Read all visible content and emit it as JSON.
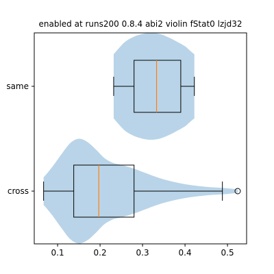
{
  "chart_data": {
    "type": "violin",
    "title": "enabled at runs200 0.8.4 abi2 violin fStat0 lzjd32",
    "xlabel": "",
    "ylabel": "",
    "orientation": "horizontal",
    "xlim": [
      0.045,
      0.545
    ],
    "x_ticks": [
      0.1,
      0.2,
      0.3,
      0.4,
      0.5
    ],
    "x_tick_labels": [
      "0.1",
      "0.2",
      "0.3",
      "0.4",
      "0.5"
    ],
    "categories": [
      "cross",
      "same"
    ],
    "violin_color": "#b9d4e8",
    "median_color": "#ff7f0e",
    "grid": false,
    "legend": "none",
    "series": [
      {
        "category": "cross",
        "whisker_low": 0.067,
        "q1": 0.138,
        "median": 0.197,
        "q3": 0.28,
        "whisker_high": 0.488,
        "outliers": [
          0.524
        ],
        "density": [
          {
            "x": 0.067,
            "w": 0.26
          },
          {
            "x": 0.075,
            "w": 0.33
          },
          {
            "x": 0.09,
            "w": 0.48
          },
          {
            "x": 0.11,
            "w": 0.7
          },
          {
            "x": 0.13,
            "w": 0.9
          },
          {
            "x": 0.15,
            "w": 0.98
          },
          {
            "x": 0.17,
            "w": 0.92
          },
          {
            "x": 0.19,
            "w": 0.78
          },
          {
            "x": 0.21,
            "w": 0.62
          },
          {
            "x": 0.23,
            "w": 0.53
          },
          {
            "x": 0.25,
            "w": 0.49
          },
          {
            "x": 0.28,
            "w": 0.42
          },
          {
            "x": 0.31,
            "w": 0.33
          },
          {
            "x": 0.35,
            "w": 0.22
          },
          {
            "x": 0.4,
            "w": 0.13
          },
          {
            "x": 0.45,
            "w": 0.08
          },
          {
            "x": 0.49,
            "w": 0.06
          },
          {
            "x": 0.51,
            "w": 0.045
          },
          {
            "x": 0.524,
            "w": 0.03
          }
        ]
      },
      {
        "category": "same",
        "whisker_low": 0.232,
        "q1": 0.28,
        "median": 0.333,
        "q3": 0.39,
        "whisker_high": 0.422,
        "outliers": [],
        "density": [
          {
            "x": 0.232,
            "w": 0.6
          },
          {
            "x": 0.245,
            "w": 0.72
          },
          {
            "x": 0.26,
            "w": 0.84
          },
          {
            "x": 0.28,
            "w": 0.93
          },
          {
            "x": 0.3,
            "w": 0.98
          },
          {
            "x": 0.32,
            "w": 1.0
          },
          {
            "x": 0.34,
            "w": 0.98
          },
          {
            "x": 0.36,
            "w": 0.92
          },
          {
            "x": 0.38,
            "w": 0.84
          },
          {
            "x": 0.4,
            "w": 0.75
          },
          {
            "x": 0.41,
            "w": 0.68
          },
          {
            "x": 0.422,
            "w": 0.6
          }
        ]
      }
    ]
  }
}
